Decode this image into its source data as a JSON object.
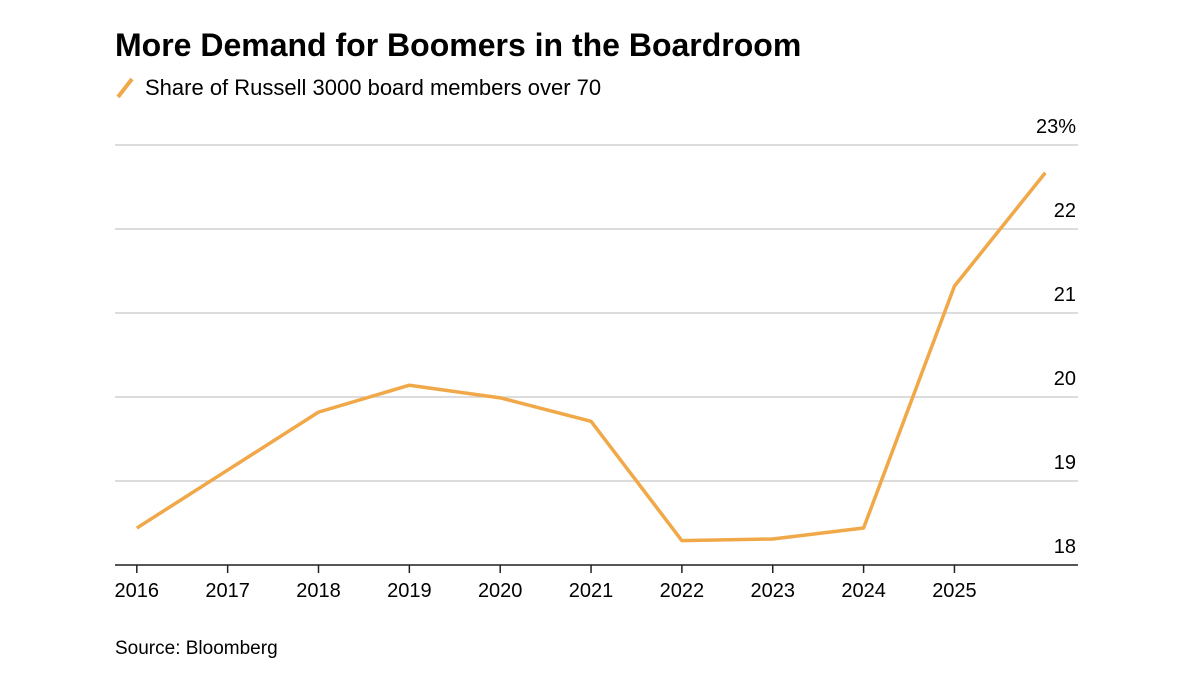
{
  "chart_data": {
    "type": "line",
    "title": "More Demand for Boomers in the Boardroom",
    "source": "Source: Bloomberg",
    "x": [
      2016,
      2017,
      2018,
      2019,
      2020,
      2021,
      2022,
      2023,
      2024,
      2025,
      2026
    ],
    "series": [
      {
        "name": "Share of Russell 3000 board members over 70",
        "color": "#f0a848",
        "values": [
          18.44,
          19.13,
          19.82,
          20.14,
          19.99,
          19.71,
          18.29,
          18.31,
          18.44,
          21.32,
          22.67
        ]
      }
    ],
    "xlim": [
      2015.76,
      2026.36
    ],
    "xticks": [
      2016,
      2017,
      2018,
      2019,
      2020,
      2021,
      2022,
      2023,
      2024,
      2025
    ],
    "ylim": [
      18,
      23
    ],
    "yticks": [
      18,
      19,
      20,
      21,
      22,
      {
        "value": 23,
        "label": "23%"
      }
    ],
    "grid": true
  }
}
